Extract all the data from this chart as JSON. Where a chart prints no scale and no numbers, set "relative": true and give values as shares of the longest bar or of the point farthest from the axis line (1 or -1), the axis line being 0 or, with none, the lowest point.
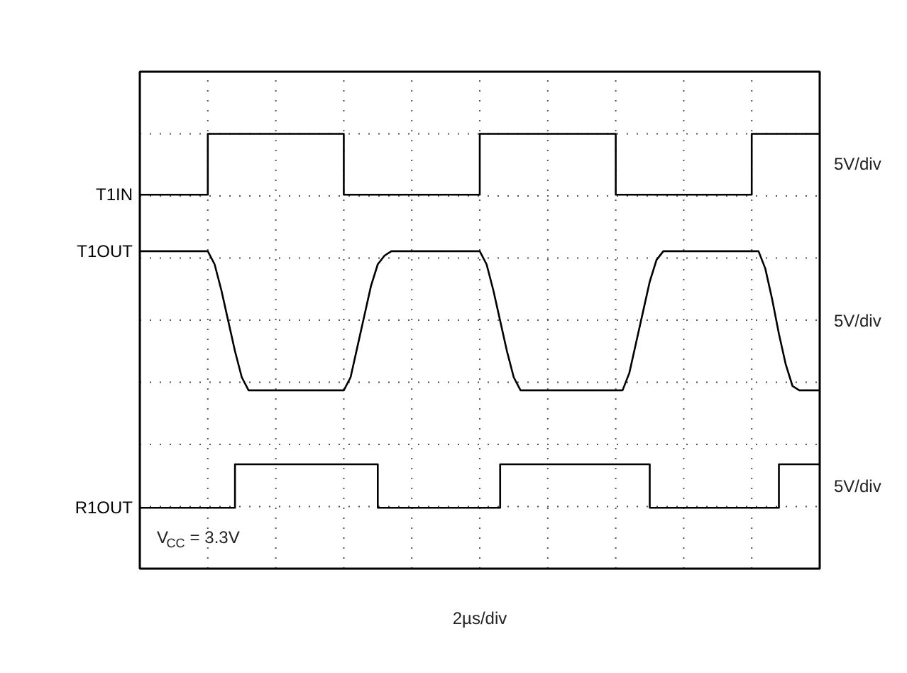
{
  "chart_data": {
    "type": "line",
    "relative": true,
    "xlabel": "2µs/div",
    "grid": true,
    "categories": [
      null,
      null,
      null,
      null,
      null,
      null,
      null,
      null,
      null,
      null,
      null,
      null,
      null,
      null,
      null,
      null,
      null,
      null,
      null,
      null,
      null,
      null,
      null,
      null,
      null,
      null,
      null,
      null,
      null,
      null,
      null,
      null,
      null,
      null,
      null,
      null,
      null,
      null,
      null,
      null,
      null,
      null,
      null,
      null,
      null,
      null,
      null,
      null,
      null,
      null,
      null,
      null,
      null,
      null,
      null,
      null,
      null,
      null,
      null,
      null,
      null,
      null,
      null,
      null,
      null,
      null,
      null,
      null,
      null,
      null,
      null,
      null,
      null,
      null,
      null,
      null,
      null,
      null,
      null,
      null,
      null,
      null,
      null,
      null,
      null,
      null,
      null,
      null,
      null,
      null,
      null,
      null,
      null,
      null,
      null,
      null,
      null,
      null,
      null,
      null,
      null
    ],
    "series": [
      {
        "name": "T1IN",
        "type": "step",
        "color": "#000000",
        "values": [
          0.86,
          0.86,
          0.86,
          0.86,
          0.86,
          0.86,
          0.86,
          0.86,
          0.86,
          0.86,
          1,
          1,
          1,
          1,
          1,
          1,
          1,
          1,
          1,
          1,
          1,
          1,
          1,
          1,
          1,
          1,
          1,
          1,
          1,
          1,
          0.86,
          0.86,
          0.86,
          0.86,
          0.86,
          0.86,
          0.86,
          0.86,
          0.86,
          0.86,
          0.86,
          0.86,
          0.86,
          0.86,
          0.86,
          0.86,
          0.86,
          0.86,
          0.86,
          0.86,
          1,
          1,
          1,
          1,
          1,
          1,
          1,
          1,
          1,
          1,
          1,
          1,
          1,
          1,
          1,
          1,
          1,
          1,
          1,
          1,
          0.86,
          0.86,
          0.86,
          0.86,
          0.86,
          0.86,
          0.86,
          0.86,
          0.86,
          0.86,
          0.86,
          0.86,
          0.86,
          0.86,
          0.86,
          0.86,
          0.86,
          0.86,
          0.86,
          0.86,
          1,
          1,
          1,
          1,
          1,
          1,
          1,
          1,
          1,
          1,
          1
        ]
      },
      {
        "name": "T1OUT",
        "color": "#000000",
        "values": [
          0.73,
          0.73,
          0.73,
          0.73,
          0.73,
          0.73,
          0.73,
          0.73,
          0.73,
          0.73,
          0.73,
          0.7,
          0.64,
          0.57,
          0.5,
          0.44,
          0.41,
          0.41,
          0.41,
          0.41,
          0.41,
          0.41,
          0.41,
          0.41,
          0.41,
          0.41,
          0.41,
          0.41,
          0.41,
          0.41,
          0.41,
          0.44,
          0.51,
          0.58,
          0.65,
          0.7,
          0.72,
          0.73,
          0.73,
          0.73,
          0.73,
          0.73,
          0.73,
          0.73,
          0.73,
          0.73,
          0.73,
          0.73,
          0.73,
          0.73,
          0.73,
          0.7,
          0.64,
          0.57,
          0.5,
          0.44,
          0.41,
          0.41,
          0.41,
          0.41,
          0.41,
          0.41,
          0.41,
          0.41,
          0.41,
          0.41,
          0.41,
          0.41,
          0.41,
          0.41,
          0.41,
          0.41,
          0.45,
          0.52,
          0.59,
          0.66,
          0.71,
          0.73,
          0.73,
          0.73,
          0.73,
          0.73,
          0.73,
          0.73,
          0.73,
          0.73,
          0.73,
          0.73,
          0.73,
          0.73,
          0.73,
          0.73,
          0.69,
          0.62,
          0.54,
          0.47,
          0.42,
          0.41,
          0.41,
          0.41,
          0.41
        ]
      },
      {
        "name": "R1OUT",
        "type": "step",
        "color": "#000000",
        "values": [
          0.14,
          0.14,
          0.14,
          0.14,
          0.14,
          0.14,
          0.14,
          0.14,
          0.14,
          0.14,
          0.14,
          0.14,
          0.14,
          0.14,
          0.24,
          0.24,
          0.24,
          0.24,
          0.24,
          0.24,
          0.24,
          0.24,
          0.24,
          0.24,
          0.24,
          0.24,
          0.24,
          0.24,
          0.24,
          0.24,
          0.24,
          0.24,
          0.24,
          0.24,
          0.24,
          0.14,
          0.14,
          0.14,
          0.14,
          0.14,
          0.14,
          0.14,
          0.14,
          0.14,
          0.14,
          0.14,
          0.14,
          0.14,
          0.14,
          0.14,
          0.14,
          0.14,
          0.14,
          0.24,
          0.24,
          0.24,
          0.24,
          0.24,
          0.24,
          0.24,
          0.24,
          0.24,
          0.24,
          0.24,
          0.24,
          0.24,
          0.24,
          0.24,
          0.24,
          0.24,
          0.24,
          0.24,
          0.24,
          0.24,
          0.24,
          0.14,
          0.14,
          0.14,
          0.14,
          0.14,
          0.14,
          0.14,
          0.14,
          0.14,
          0.14,
          0.14,
          0.14,
          0.14,
          0.14,
          0.14,
          0.14,
          0.14,
          0.14,
          0.14,
          0.24,
          0.24,
          0.24,
          0.24,
          0.24,
          0.24,
          0.24
        ]
      }
    ],
    "annotations": [
      "5V/div",
      "5V/div",
      "5V/div",
      "V$_{CC}$ = 3.3V"
    ]
  }
}
